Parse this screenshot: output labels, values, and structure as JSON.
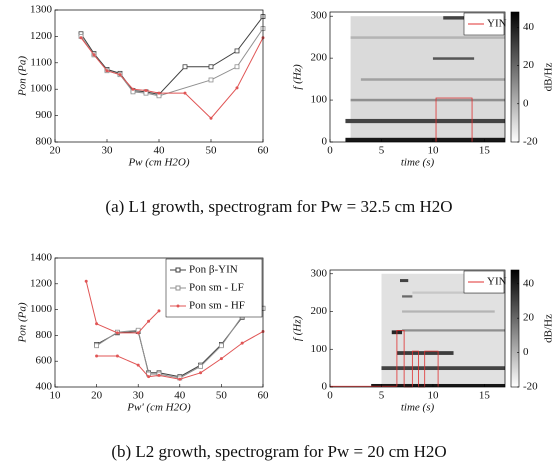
{
  "chart_data": [
    {
      "type": "line",
      "xlabel": "Pw (cm H2O)",
      "ylabel": "Pon (Pa)",
      "xlim": [
        20,
        60
      ],
      "xticks": [
        20,
        30,
        40,
        50,
        60
      ],
      "ylim": [
        800,
        1300
      ],
      "yticks": [
        800,
        900,
        1000,
        1100,
        1200,
        1300
      ],
      "series": [
        {
          "color": "#404040",
          "marker": "square",
          "x": [
            25,
            27.5,
            30,
            32.5,
            35,
            37.5,
            40,
            45,
            50,
            55,
            60
          ],
          "values": [
            1210,
            1135,
            1075,
            1060,
            995,
            990,
            980,
            1085,
            1085,
            1145,
            1275
          ]
        },
        {
          "color": "#909090",
          "marker": "square",
          "x": [
            25,
            27.5,
            30,
            32.5,
            35,
            37.5,
            40,
            50,
            55,
            60
          ],
          "values": [
            1200,
            1130,
            1070,
            1055,
            990,
            985,
            975,
            1035,
            1085,
            1230
          ]
        },
        {
          "color": "#e05555",
          "marker": "dot",
          "x": [
            25,
            27.5,
            30,
            32.5,
            35,
            37.5,
            40,
            45,
            50,
            55,
            60
          ],
          "values": [
            1195,
            1130,
            1070,
            1055,
            1000,
            995,
            985,
            985,
            890,
            1005,
            1195
          ]
        }
      ]
    },
    {
      "type": "spectrogram",
      "xlabel": "time (s)",
      "ylabel": "f (Hz)",
      "xlim": [
        0,
        17
      ],
      "xticks": [
        0,
        5,
        10,
        15
      ],
      "ylim": [
        0,
        310
      ],
      "yticks": [
        0,
        100,
        200,
        300
      ],
      "clim": [
        -20,
        48
      ],
      "cticks": [
        -20,
        0,
        20,
        40
      ],
      "clabel": "dB/Hz",
      "legend": "upper right",
      "bands": [
        {
          "f": [
            0,
            300
          ],
          "t": [
            2,
            17
          ],
          "db": -10
        },
        {
          "f": [
            0,
            10
          ],
          "t": [
            1.5,
            17
          ],
          "db": 42
        },
        {
          "f": [
            45,
            55
          ],
          "t": [
            1.5,
            17
          ],
          "db": 30
        },
        {
          "f": [
            97,
            103
          ],
          "t": [
            2,
            17
          ],
          "db": 10
        },
        {
          "f": [
            146,
            152
          ],
          "t": [
            3,
            17
          ],
          "db": 5
        },
        {
          "f": [
            196,
            202
          ],
          "t": [
            10,
            14
          ],
          "db": 25
        },
        {
          "f": [
            246,
            252
          ],
          "t": [
            2,
            17
          ],
          "db": 0
        },
        {
          "f": [
            292,
            300
          ],
          "t": [
            11,
            14
          ],
          "db": 30
        }
      ],
      "series": [
        {
          "name": "YIN",
          "color": "#e03030",
          "x": [
            10.3,
            10.3,
            13.8,
            13.8
          ],
          "values": [
            0,
            105,
            105,
            0
          ]
        }
      ]
    },
    {
      "type": "line",
      "xlabel": "Pw' (cm H2O)",
      "ylabel": "Pon (Pa)",
      "xlim": [
        10,
        60
      ],
      "xticks": [
        10,
        20,
        30,
        40,
        50,
        60
      ],
      "ylim": [
        400,
        1400
      ],
      "yticks": [
        400,
        600,
        800,
        1000,
        1200,
        1400
      ],
      "legend": "upper right",
      "series": [
        {
          "name": "Pon β-YIN",
          "color": "#404040",
          "marker": "square",
          "x": [
            20,
            25,
            30,
            32.5,
            35,
            40,
            45,
            50,
            55,
            60
          ],
          "values": [
            730,
            820,
            830,
            510,
            510,
            480,
            570,
            730,
            940,
            1010
          ]
        },
        {
          "name": "Pon sm - LF",
          "color": "#909090",
          "marker": "square",
          "x": [
            20,
            25,
            30,
            32.5,
            35,
            40,
            45,
            50,
            55,
            60
          ],
          "values": [
            720,
            825,
            840,
            500,
            500,
            470,
            560,
            720,
            950,
            1010
          ]
        },
        {
          "name": "Pon sm - HF",
          "color": "#e05555",
          "marker": "dot",
          "x": [
            17.5,
            20,
            25,
            30,
            32.5,
            35
          ],
          "values": [
            1220,
            890,
            820,
            820,
            910,
            990
          ]
        },
        {
          "color": "#e05555",
          "marker": "dot",
          "x": [
            20,
            25,
            30,
            32.5,
            35,
            40,
            45,
            50,
            55,
            60
          ],
          "values": [
            640,
            640,
            570,
            480,
            490,
            460,
            510,
            620,
            740,
            830
          ]
        }
      ]
    },
    {
      "type": "spectrogram",
      "xlabel": "time (s)",
      "ylabel": "f (Hz)",
      "xlim": [
        0,
        17
      ],
      "xticks": [
        0,
        5,
        10,
        15
      ],
      "ylim": [
        0,
        310
      ],
      "yticks": [
        0,
        100,
        200,
        300
      ],
      "clim": [
        -20,
        48
      ],
      "cticks": [
        -20,
        0,
        20,
        40
      ],
      "clabel": "dB/Hz",
      "legend": "upper right",
      "bands": [
        {
          "f": [
            0,
            300
          ],
          "t": [
            5,
            17
          ],
          "db": -12
        },
        {
          "f": [
            0,
            8
          ],
          "t": [
            4,
            17
          ],
          "db": 42
        },
        {
          "f": [
            45,
            55
          ],
          "t": [
            5,
            17
          ],
          "db": 30
        },
        {
          "f": [
            85,
            95
          ],
          "t": [
            6.5,
            12
          ],
          "db": 32
        },
        {
          "f": [
            140,
            150
          ],
          "t": [
            6,
            7
          ],
          "db": 38
        },
        {
          "f": [
            147,
            153
          ],
          "t": [
            7,
            17
          ],
          "db": 10
        },
        {
          "f": [
            197,
            203
          ],
          "t": [
            7,
            16
          ],
          "db": 0
        },
        {
          "f": [
            237,
            243
          ],
          "t": [
            7,
            8
          ],
          "db": 20
        },
        {
          "f": [
            247,
            253
          ],
          "t": [
            8,
            17
          ],
          "db": -5
        },
        {
          "f": [
            278,
            286
          ],
          "t": [
            6.8,
            7.6
          ],
          "db": 30
        }
      ],
      "series": [
        {
          "name": "YIN",
          "color": "#e03030",
          "x": [
            0,
            6.5,
            6.5,
            7.2,
            7.2,
            8,
            8,
            8.6,
            8.6,
            9.2,
            9.2,
            10.5,
            10.5
          ],
          "values": [
            2,
            2,
            150,
            150,
            0,
            0,
            95,
            95,
            0,
            0,
            95,
            95,
            0
          ]
        }
      ]
    }
  ],
  "captions": [
    "(a) L1 growth, spectrogram for Pw = 32.5 cm H2O",
    "(b) L2 growth, spectrogram for Pw = 20 cm H2O"
  ]
}
